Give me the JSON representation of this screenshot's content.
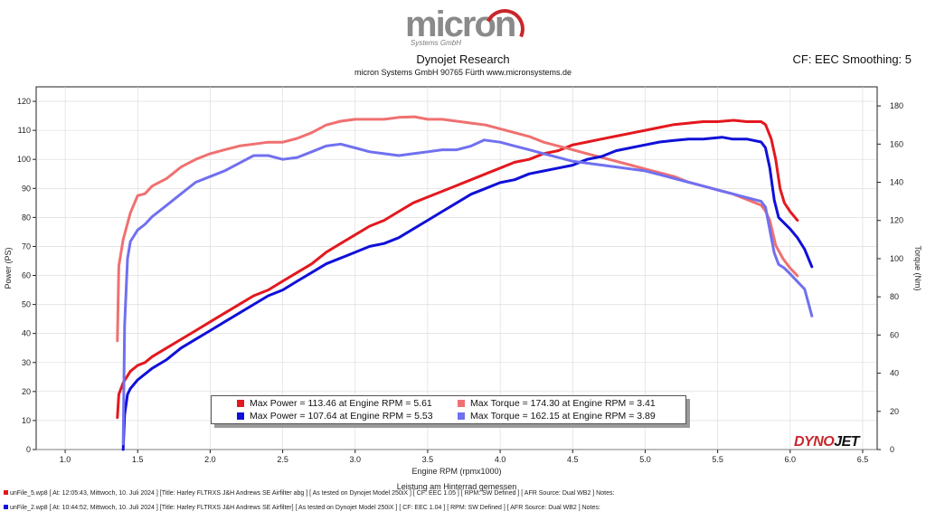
{
  "header": {
    "logo_text": "micron",
    "logo_sub": "Systems GmbH",
    "title": "Dynojet Research",
    "subtitle": "micron Systems GmbH  90765 Fürth www.micronsystems.de",
    "smoothing": "CF: EEC Smoothing: 5",
    "brand_a": "DYNO",
    "brand_b": "JET"
  },
  "legend": {
    "items": [
      {
        "text": "Max Power = 113.46 at Engine RPM = 5.61",
        "color": "#e3181e"
      },
      {
        "text": "Max Torque = 174.30 at Engine RPM = 3.41",
        "color": "#f07070"
      },
      {
        "text": "Max Power = 107.64 at Engine RPM = 5.53",
        "color": "#1010d8"
      },
      {
        "text": "Max Torque = 162.15 at Engine RPM = 3.89",
        "color": "#7070f0"
      }
    ]
  },
  "footer": {
    "line1": "unFile_5.wp8 [ At: 12:05:43, Mittwoch, 10. Juli 2024 ] [Title: Harley FLTRXS J&H Andrews SE Airfilter abg ]  [ As tested on Dynojet Model 250iX ] [ CF: EEC 1.05 ] [ RPM: SW Defined ] [ AFR Source: Dual WB2 ] Notes:",
    "line2": "unFile_2.wp8 [ At: 10:44:52, Mittwoch, 10. Juli 2024 ] [Title: Harley FLTRXS J&H Andrews SE Airfilter]  [ As tested on Dynojet Model 250iX ] [ CF: EEC 1.04 ] [ RPM: SW Defined ] [ AFR Source: Dual WB2 ] Notes:",
    "color1": "#e3181e",
    "color2": "#1010d8"
  },
  "chart_data": {
    "type": "line",
    "xlabel": "Engine RPM (rpmx1000)",
    "xlabel2": "Leistung am Hinterrad gemessen",
    "ylabel_left": "Power (PS)",
    "ylabel_right": "Torque (Nm)",
    "xlim": [
      0.8,
      6.6
    ],
    "ylim_left": [
      0,
      125
    ],
    "ylim_right": [
      0,
      190
    ],
    "xticks": [
      "1.0",
      "1.5",
      "2.0",
      "2.5",
      "3.0",
      "3.5",
      "4.0",
      "4.5",
      "5.0",
      "5.5",
      "6.0",
      "6.5"
    ],
    "yticks_left": [
      "0",
      "10",
      "20",
      "30",
      "40",
      "50",
      "60",
      "70",
      "80",
      "90",
      "100",
      "110",
      "120"
    ],
    "yticks_right": [
      "0",
      "20",
      "40",
      "60",
      "80",
      "100",
      "120",
      "140",
      "160",
      "180"
    ],
    "series": [
      {
        "name": "Power",
        "axis": "left",
        "color": "#e3181e",
        "x": [
          1.36,
          1.37,
          1.4,
          1.45,
          1.5,
          1.55,
          1.6,
          1.7,
          1.8,
          1.9,
          2.0,
          2.1,
          2.2,
          2.3,
          2.4,
          2.5,
          2.6,
          2.7,
          2.8,
          2.9,
          3.0,
          3.1,
          3.2,
          3.3,
          3.4,
          3.5,
          3.6,
          3.7,
          3.8,
          3.9,
          4.0,
          4.1,
          4.2,
          4.3,
          4.4,
          4.5,
          4.6,
          4.7,
          4.8,
          4.9,
          5.0,
          5.1,
          5.2,
          5.3,
          5.4,
          5.5,
          5.61,
          5.7,
          5.8,
          5.83,
          5.87,
          5.9,
          5.93,
          5.96,
          6.0,
          6.05
        ],
        "y": [
          11,
          19,
          23,
          27,
          29,
          30,
          32,
          35,
          38,
          41,
          44,
          47,
          50,
          53,
          55,
          58,
          61,
          64,
          68,
          71,
          74,
          77,
          79,
          82,
          85,
          87,
          89,
          91,
          93,
          95,
          97,
          99,
          100,
          102,
          103,
          105,
          106,
          107,
          108,
          109,
          110,
          111,
          112,
          112.5,
          113,
          113,
          113.46,
          113,
          113,
          112,
          107,
          100,
          90,
          85,
          82,
          79
        ]
      },
      {
        "name": "Torque",
        "axis": "right",
        "color": "#f07070",
        "x": [
          1.36,
          1.37,
          1.4,
          1.45,
          1.5,
          1.55,
          1.6,
          1.7,
          1.8,
          1.9,
          2.0,
          2.1,
          2.2,
          2.3,
          2.4,
          2.5,
          2.6,
          2.7,
          2.8,
          2.9,
          3.0,
          3.1,
          3.2,
          3.3,
          3.41,
          3.5,
          3.6,
          3.7,
          3.8,
          3.9,
          4.0,
          4.1,
          4.2,
          4.3,
          4.4,
          4.5,
          4.6,
          4.7,
          4.8,
          4.9,
          5.0,
          5.1,
          5.2,
          5.3,
          5.4,
          5.5,
          5.6,
          5.7,
          5.8,
          5.83,
          5.86,
          5.9,
          5.95,
          6.0,
          6.05
        ],
        "y": [
          57,
          96,
          110,
          124,
          133,
          134,
          138,
          142,
          148,
          152,
          155,
          157,
          159,
          160,
          161,
          161,
          163,
          166,
          170,
          172,
          173,
          173,
          173,
          174,
          174.3,
          173,
          173,
          172,
          171,
          170,
          168,
          166,
          164,
          161,
          159,
          157,
          155,
          153,
          151,
          149,
          147,
          145,
          143,
          140,
          138,
          136,
          134,
          131,
          128,
          125,
          120,
          107,
          100,
          95,
          91
        ]
      },
      {
        "name": "Power",
        "axis": "left",
        "color": "#1010d8",
        "x": [
          1.4,
          1.41,
          1.43,
          1.45,
          1.5,
          1.55,
          1.6,
          1.7,
          1.8,
          1.9,
          2.0,
          2.1,
          2.2,
          2.3,
          2.4,
          2.5,
          2.6,
          2.7,
          2.8,
          2.9,
          3.0,
          3.1,
          3.2,
          3.3,
          3.4,
          3.5,
          3.6,
          3.7,
          3.8,
          3.9,
          4.0,
          4.1,
          4.2,
          4.3,
          4.4,
          4.5,
          4.6,
          4.7,
          4.8,
          4.9,
          5.0,
          5.1,
          5.2,
          5.3,
          5.4,
          5.53,
          5.6,
          5.7,
          5.8,
          5.83,
          5.86,
          5.89,
          5.92,
          5.96,
          6.0,
          6.05,
          6.1,
          6.15
        ],
        "y": [
          0,
          12,
          19,
          21,
          24,
          26,
          28,
          31,
          35,
          38,
          41,
          44,
          47,
          50,
          53,
          55,
          58,
          61,
          64,
          66,
          68,
          70,
          71,
          73,
          76,
          79,
          82,
          85,
          88,
          90,
          92,
          93,
          95,
          96,
          97,
          98,
          100,
          101,
          103,
          104,
          105,
          106,
          106.5,
          107,
          107,
          107.64,
          107,
          107,
          106,
          104,
          97,
          86,
          80,
          78,
          76,
          73,
          69,
          63
        ]
      },
      {
        "name": "Torque",
        "axis": "right",
        "color": "#7070f0",
        "x": [
          1.4,
          1.41,
          1.43,
          1.45,
          1.5,
          1.55,
          1.6,
          1.7,
          1.8,
          1.9,
          2.0,
          2.1,
          2.2,
          2.3,
          2.4,
          2.5,
          2.6,
          2.7,
          2.8,
          2.9,
          3.0,
          3.1,
          3.2,
          3.3,
          3.4,
          3.5,
          3.6,
          3.7,
          3.8,
          3.89,
          4.0,
          4.1,
          4.2,
          4.3,
          4.4,
          4.5,
          4.6,
          4.7,
          4.8,
          4.9,
          5.0,
          5.1,
          5.2,
          5.3,
          5.4,
          5.5,
          5.6,
          5.7,
          5.8,
          5.83,
          5.86,
          5.89,
          5.92,
          5.96,
          6.0,
          6.05,
          6.1,
          6.15
        ],
        "y": [
          3,
          65,
          100,
          109,
          115,
          118,
          122,
          128,
          134,
          140,
          143,
          146,
          150,
          154,
          154,
          152,
          153,
          156,
          159,
          160,
          158,
          156,
          155,
          154,
          155,
          156,
          157,
          157,
          159,
          162.15,
          161,
          159,
          157,
          155,
          153,
          151,
          150,
          149,
          148,
          147,
          146,
          144,
          142,
          140,
          138,
          136,
          134,
          132,
          130,
          127,
          115,
          103,
          97,
          95,
          92,
          88,
          84,
          70
        ]
      }
    ]
  }
}
